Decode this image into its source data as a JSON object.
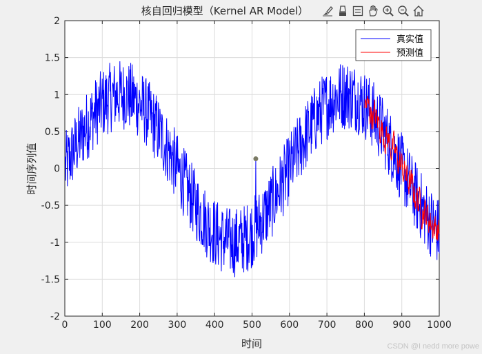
{
  "window": {
    "title": "核自回归模型（Kernel AR Model）",
    "toolbar_icons": [
      "brush-icon",
      "eraser-icon",
      "legend-icon",
      "pan-hand-icon",
      "zoom-in-icon",
      "zoom-out-icon",
      "home-icon"
    ]
  },
  "watermark": "CSDN @I nedd more powe",
  "chart_data": {
    "type": "line",
    "title": "核自回归模型（Kernel AR Model）",
    "xlabel": "时间",
    "ylabel": "时间序列值",
    "xlim": [
      0,
      1000
    ],
    "ylim": [
      -2,
      2
    ],
    "xticks": [
      0,
      100,
      200,
      300,
      400,
      500,
      600,
      700,
      800,
      900,
      1000
    ],
    "yticks": [
      -2,
      -1.5,
      -1,
      -0.5,
      0,
      0.5,
      1,
      1.5,
      2
    ],
    "grid": true,
    "legend_position": "top-right",
    "series": [
      {
        "name": "真实值",
        "color": "#0000ff",
        "x_range": [
          1,
          1000
        ],
        "underlying_curve": "sin(2*pi*t/600)",
        "noise_amplitude": 0.3,
        "annotated_point": {
          "x": 510,
          "y": 0.13
        }
      },
      {
        "name": "预测值",
        "color": "#ff0000",
        "x_range": [
          801,
          1000
        ],
        "underlying_curve": "sin(2*pi*t/600)",
        "noise_amplitude": 0.2
      }
    ]
  }
}
